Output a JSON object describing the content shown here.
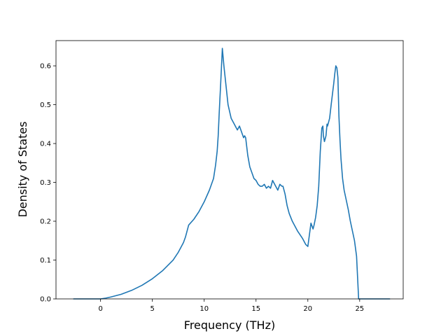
{
  "chart_data": {
    "type": "line",
    "title": "",
    "xlabel": "Frequency (THz)",
    "ylabel": "Density of States",
    "xlim": [
      -4.3,
      29.2
    ],
    "ylim": [
      0,
      0.665
    ],
    "xticks": [
      0,
      5,
      10,
      15,
      20,
      25
    ],
    "xtick_labels": [
      "0",
      "5",
      "10",
      "15",
      "20",
      "25"
    ],
    "yticks": [
      0.0,
      0.1,
      0.2,
      0.3,
      0.4,
      0.5,
      0.6
    ],
    "ytick_labels": [
      "0.0",
      "0.1",
      "0.2",
      "0.3",
      "0.4",
      "0.5",
      "0.6"
    ],
    "grid": false,
    "legend": "none",
    "line_color": "#1f77b4",
    "series": [
      {
        "name": "",
        "x": [
          -2.6,
          -1.0,
          0.0,
          0.5,
          1.0,
          2.0,
          3.0,
          4.0,
          5.0,
          6.0,
          7.0,
          7.5,
          8.0,
          8.2,
          8.5,
          9.0,
          9.5,
          10.0,
          10.5,
          10.9,
          11.1,
          11.25,
          11.35,
          11.45,
          11.6,
          11.75,
          11.9,
          12.0,
          12.3,
          12.6,
          12.8,
          12.9,
          13.1,
          13.2,
          13.4,
          13.6,
          13.8,
          13.9,
          14.0,
          14.2,
          14.4,
          14.6,
          14.8,
          15.0,
          15.2,
          15.4,
          15.6,
          15.8,
          16.0,
          16.2,
          16.4,
          16.6,
          16.9,
          17.1,
          17.3,
          17.5,
          17.6,
          17.8,
          18.0,
          18.2,
          18.5,
          19.0,
          19.5,
          19.8,
          20.0,
          20.15,
          20.3,
          20.5,
          20.6,
          20.75,
          20.9,
          21.05,
          21.2,
          21.35,
          21.45,
          21.5,
          21.6,
          21.75,
          21.85,
          21.9,
          22.0,
          22.1,
          22.25,
          22.5,
          22.6,
          22.7,
          22.8,
          22.9,
          23.0,
          23.1,
          23.2,
          23.35,
          23.5,
          23.7,
          23.9,
          24.1,
          24.3,
          24.5,
          24.7,
          24.9,
          25.1,
          25.2,
          25.25,
          25.4,
          25.7,
          26.5,
          27.0,
          27.9
        ],
        "y": [
          0.0,
          0.0,
          0.0,
          0.002,
          0.005,
          0.012,
          0.022,
          0.035,
          0.052,
          0.073,
          0.1,
          0.12,
          0.145,
          0.16,
          0.19,
          0.205,
          0.225,
          0.25,
          0.28,
          0.31,
          0.345,
          0.38,
          0.42,
          0.48,
          0.56,
          0.645,
          0.6,
          0.575,
          0.5,
          0.465,
          0.455,
          0.45,
          0.44,
          0.435,
          0.445,
          0.43,
          0.415,
          0.42,
          0.415,
          0.37,
          0.34,
          0.325,
          0.31,
          0.305,
          0.295,
          0.29,
          0.29,
          0.295,
          0.285,
          0.29,
          0.285,
          0.305,
          0.29,
          0.28,
          0.295,
          0.29,
          0.29,
          0.27,
          0.24,
          0.22,
          0.2,
          0.175,
          0.155,
          0.14,
          0.135,
          0.165,
          0.195,
          0.18,
          0.19,
          0.21,
          0.24,
          0.29,
          0.38,
          0.44,
          0.445,
          0.42,
          0.405,
          0.42,
          0.45,
          0.445,
          0.455,
          0.465,
          0.5,
          0.555,
          0.58,
          0.6,
          0.595,
          0.57,
          0.47,
          0.41,
          0.36,
          0.31,
          0.28,
          0.255,
          0.23,
          0.2,
          0.175,
          0.15,
          0.11,
          0.0,
          0.0,
          0.0,
          0.0,
          0.0,
          0.0,
          0.0,
          0.0,
          0.0
        ]
      }
    ]
  }
}
